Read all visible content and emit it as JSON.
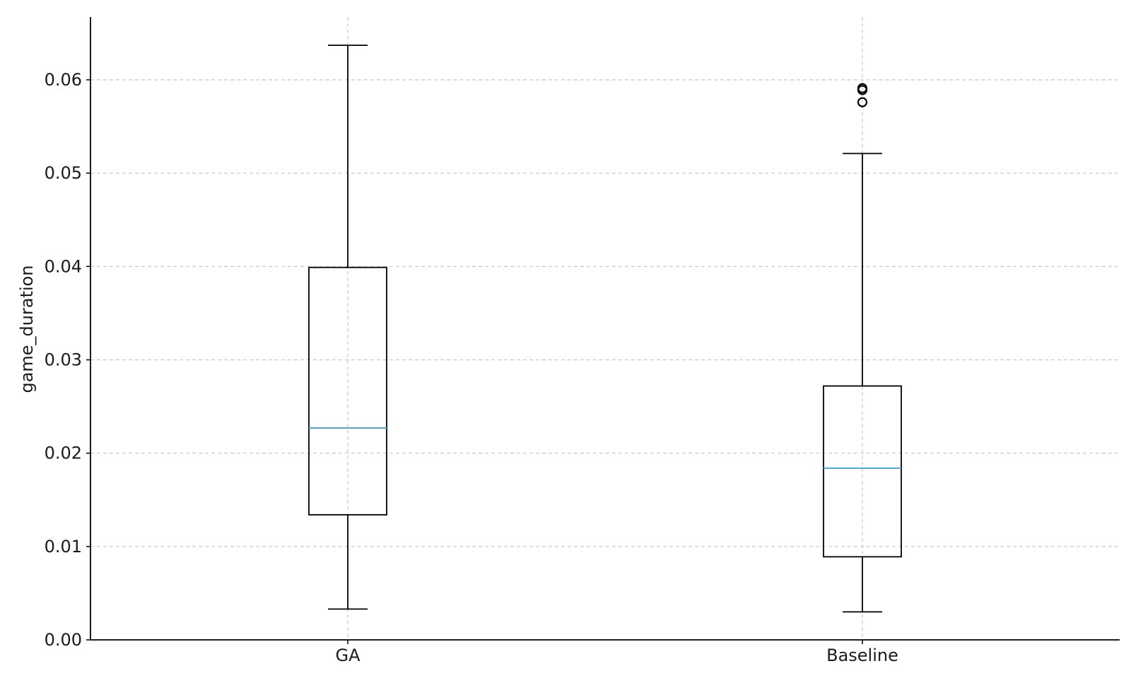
{
  "chart_data": {
    "type": "box",
    "title": "",
    "xlabel": "",
    "ylabel": "game_duration",
    "ylim": [
      0,
      0.067
    ],
    "grid": true,
    "y_ticks": [
      {
        "value": 0.0,
        "label": "0.00"
      },
      {
        "value": 0.01,
        "label": "0.01"
      },
      {
        "value": 0.02,
        "label": "0.02"
      },
      {
        "value": 0.03,
        "label": "0.03"
      },
      {
        "value": 0.04,
        "label": "0.04"
      },
      {
        "value": 0.05,
        "label": "0.05"
      },
      {
        "value": 0.06,
        "label": "0.06"
      }
    ],
    "categories": [
      "GA",
      "Baseline"
    ],
    "boxes": [
      {
        "label": "GA",
        "whisker_low": 0.0033,
        "q1": 0.0134,
        "median": 0.0227,
        "q3": 0.0399,
        "whisker_high": 0.0637,
        "outliers": []
      },
      {
        "label": "Baseline",
        "whisker_low": 0.003,
        "q1": 0.0089,
        "median": 0.0184,
        "q3": 0.0272,
        "whisker_high": 0.0521,
        "outliers": [
          0.0576,
          0.0589,
          0.0591
        ]
      }
    ],
    "colors": {
      "box": "#000000",
      "median": "#4aa8e0",
      "grid": "#c8c8c8"
    }
  }
}
